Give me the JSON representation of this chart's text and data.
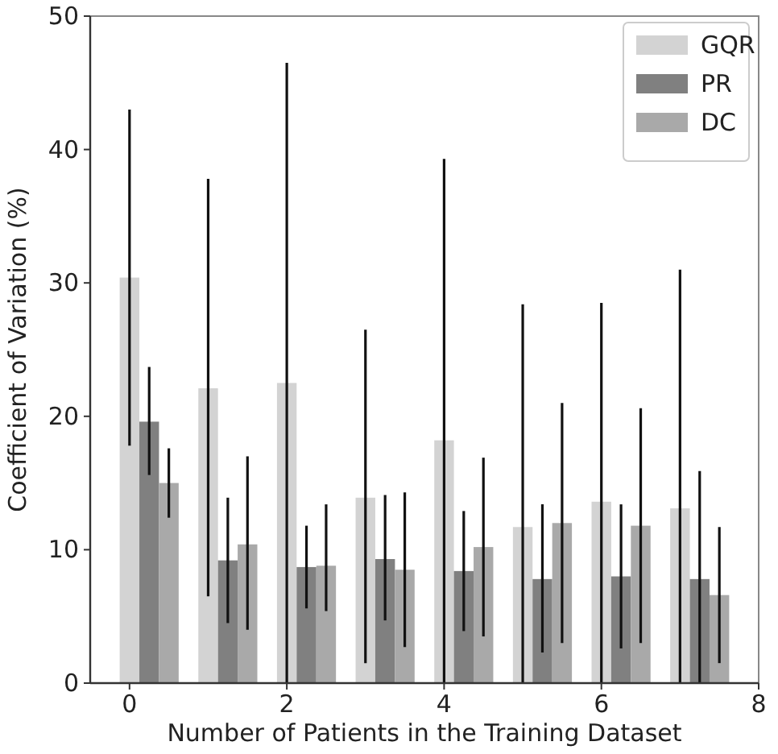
{
  "chart_data": {
    "type": "bar",
    "xlabel": "Number of Patients in the Training Dataset",
    "ylabel": "Coefficient of Variation (%)",
    "x": [
      0,
      1,
      2,
      3,
      4,
      5,
      6,
      7
    ],
    "series": [
      {
        "name": "GQR",
        "color": "#d3d3d3",
        "values": [
          30.4,
          22.1,
          22.5,
          13.9,
          18.2,
          11.7,
          13.6,
          13.1
        ],
        "errors": [
          [
            17.8,
            43.0
          ],
          [
            6.5,
            37.8
          ],
          [
            0,
            46.5
          ],
          [
            1.5,
            26.5
          ],
          [
            0,
            39.3
          ],
          [
            0,
            28.4
          ],
          [
            0,
            28.5
          ],
          [
            0,
            31.0
          ]
        ]
      },
      {
        "name": "PR",
        "color": "#808080",
        "values": [
          19.6,
          9.2,
          8.7,
          9.3,
          8.4,
          7.8,
          8.0,
          7.8
        ],
        "errors": [
          [
            15.6,
            23.7
          ],
          [
            4.5,
            13.9
          ],
          [
            5.6,
            11.8
          ],
          [
            4.7,
            14.1
          ],
          [
            3.9,
            12.9
          ],
          [
            2.3,
            13.4
          ],
          [
            2.6,
            13.4
          ],
          [
            0,
            15.9
          ]
        ]
      },
      {
        "name": "DC",
        "color": "#a9a9a9",
        "values": [
          15.0,
          10.4,
          8.8,
          8.5,
          10.2,
          12.0,
          11.8,
          6.6
        ],
        "errors": [
          [
            12.4,
            17.6
          ],
          [
            4.0,
            17.0
          ],
          [
            5.4,
            13.4
          ],
          [
            2.7,
            14.3
          ],
          [
            3.5,
            16.9
          ],
          [
            3.0,
            21.0
          ],
          [
            3.0,
            20.6
          ],
          [
            1.5,
            11.7
          ]
        ]
      }
    ],
    "xlim": [
      -0.5,
      8
    ],
    "xticks": [
      0,
      2,
      4,
      6,
      8
    ],
    "ylim": [
      0,
      50
    ],
    "yticks": [
      0,
      10,
      20,
      30,
      40,
      50
    ],
    "grid": false,
    "legend": "top right"
  }
}
